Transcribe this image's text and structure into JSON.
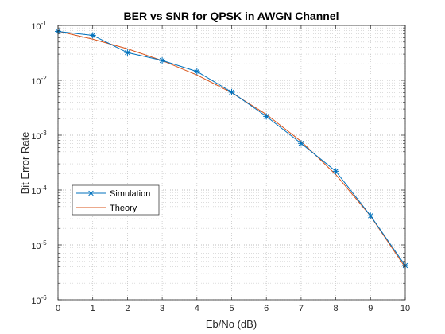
{
  "chart_data": {
    "type": "line",
    "title": "BER vs SNR for QPSK in AWGN Channel",
    "xlabel": "Eb/No (dB)",
    "ylabel": "Bit Error Rate",
    "xlim": [
      0,
      10
    ],
    "ylim": [
      1e-06,
      0.1
    ],
    "yscale": "log",
    "grid": true,
    "minor_grid": true,
    "legend_position": "lower-left",
    "x": [
      0,
      1,
      2,
      3,
      4,
      5,
      6,
      7,
      8,
      9,
      10
    ],
    "x_tick_labels": [
      "0",
      "1",
      "2",
      "3",
      "4",
      "5",
      "6",
      "7",
      "8",
      "9",
      "10"
    ],
    "y_tick_labels": [
      {
        "base": "10",
        "exp": "-6"
      },
      {
        "base": "10",
        "exp": "-5"
      },
      {
        "base": "10",
        "exp": "-4"
      },
      {
        "base": "10",
        "exp": "-3"
      },
      {
        "base": "10",
        "exp": "-2"
      },
      {
        "base": "10",
        "exp": "-1"
      }
    ],
    "series": [
      {
        "name": "Simulation",
        "color": "#0072BD",
        "marker": "asterisk",
        "values": [
          0.078,
          0.066,
          0.032,
          0.023,
          0.0145,
          0.0061,
          0.0022,
          0.00071,
          0.00022,
          3.4e-05,
          4.2e-06
        ]
      },
      {
        "name": "Theory",
        "color": "#D95319",
        "marker": "none",
        "values": [
          0.0786,
          0.0563,
          0.0375,
          0.0229,
          0.0125,
          0.00595,
          0.00239,
          0.000773,
          0.000191,
          3.36e-05,
          3.87e-06
        ]
      }
    ]
  }
}
